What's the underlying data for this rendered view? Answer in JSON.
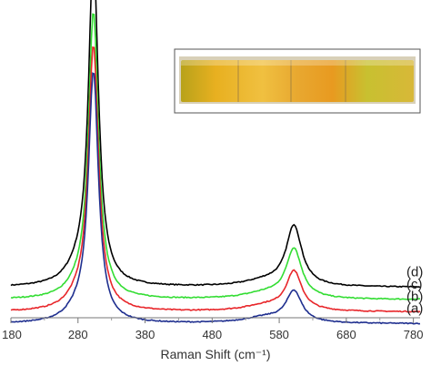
{
  "chart_data": {
    "type": "line",
    "xlabel": "Raman Shift (cm⁻¹)",
    "ylabel": "",
    "xlim": [
      180,
      790
    ],
    "x_ticks": [
      180,
      280,
      380,
      480,
      580,
      680,
      780
    ],
    "tick_labels": [
      "180",
      "280",
      "380",
      "480",
      "580",
      "680",
      "780"
    ],
    "grid": false,
    "inset_photo": "yellow-orange coated glass slides",
    "series": [
      {
        "label": "(d)",
        "color": "#000000",
        "baseline": 0.82,
        "main_peak": 6.65,
        "minor_peak": 1.22,
        "bump": 0.42
      },
      {
        "label": "(c)",
        "color": "#33dd33",
        "baseline": 0.57,
        "main_peak": 5.78,
        "minor_peak": 1.0,
        "bump": 0.3
      },
      {
        "label": "(b)",
        "color": "#e8262a",
        "baseline": 0.32,
        "main_peak": 5.35,
        "minor_peak": 0.79,
        "bump": 0.35
      },
      {
        "label": "(a)",
        "color": "#1f2f8f",
        "baseline": 0.08,
        "main_peak": 5.05,
        "minor_peak": 0.63,
        "bump": 0.35
      }
    ]
  }
}
